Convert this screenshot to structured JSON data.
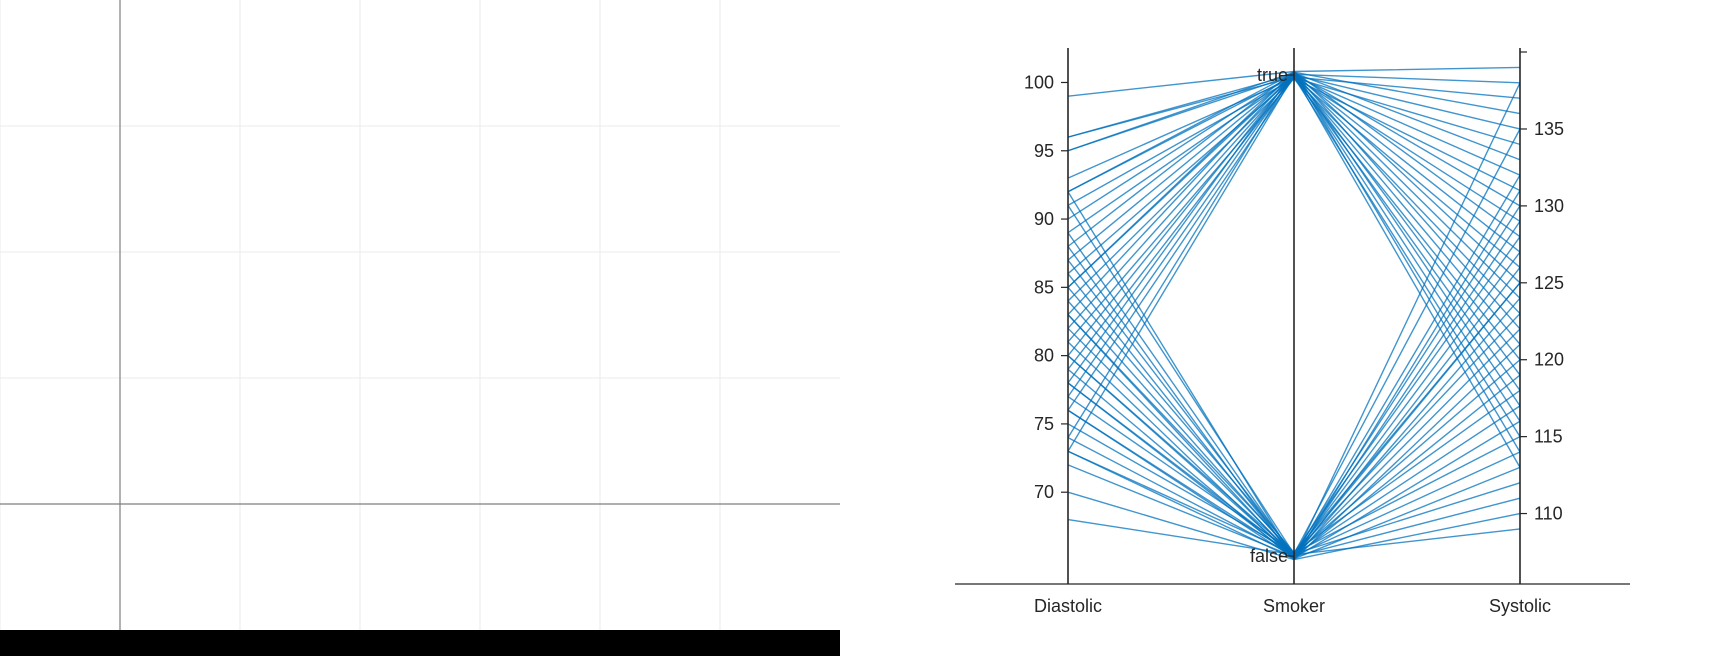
{
  "colors": {
    "line": "#0072BD",
    "axis": "#262626",
    "grid": "#ebebeb",
    "left_axis": "#7f7f7f",
    "bottom_bar": "#000000"
  },
  "left_plot": {
    "grid": true
  },
  "chart_data": {
    "type": "parallel-coordinates",
    "coordinates": [
      "Diastolic",
      "Smoker",
      "Systolic"
    ],
    "axes": [
      {
        "name": "Diastolic",
        "side": "left",
        "ylim": [
          66.5,
          101.5
        ],
        "ticks": [
          70,
          75,
          80,
          85,
          90,
          95,
          100
        ],
        "tick_labels": [
          "70",
          "75",
          "80",
          "85",
          "90",
          "95",
          "100"
        ]
      },
      {
        "name": "Smoker",
        "side": "left",
        "categories": [
          "false",
          "true"
        ]
      },
      {
        "name": "Systolic",
        "side": "right",
        "ylim": [
          107.5,
          140.2
        ],
        "ticks": [
          110,
          115,
          120,
          125,
          130,
          135
        ],
        "tick_labels": [
          "110",
          "115",
          "120",
          "125",
          "130",
          "135"
        ]
      }
    ],
    "grid": false,
    "series": [
      {
        "values": [
          99,
          true,
          139
        ]
      },
      {
        "values": [
          96,
          true,
          138
        ]
      },
      {
        "values": [
          96,
          true,
          137
        ]
      },
      {
        "values": [
          95,
          true,
          136
        ]
      },
      {
        "values": [
          95,
          true,
          135
        ]
      },
      {
        "values": [
          93,
          true,
          134
        ]
      },
      {
        "values": [
          92,
          true,
          133
        ]
      },
      {
        "values": [
          92,
          true,
          132
        ]
      },
      {
        "values": [
          91,
          true,
          131
        ]
      },
      {
        "values": [
          90,
          true,
          130
        ]
      },
      {
        "values": [
          89,
          true,
          129
        ]
      },
      {
        "values": [
          88,
          true,
          128
        ]
      },
      {
        "values": [
          87,
          true,
          127
        ]
      },
      {
        "values": [
          86,
          true,
          126
        ]
      },
      {
        "values": [
          85,
          true,
          125
        ]
      },
      {
        "values": [
          85,
          true,
          124
        ]
      },
      {
        "values": [
          84,
          true,
          123
        ]
      },
      {
        "values": [
          83,
          true,
          122
        ]
      },
      {
        "values": [
          82,
          true,
          121
        ]
      },
      {
        "values": [
          81,
          true,
          120
        ]
      },
      {
        "values": [
          80,
          true,
          119
        ]
      },
      {
        "values": [
          79,
          true,
          118
        ]
      },
      {
        "values": [
          78,
          true,
          117
        ]
      },
      {
        "values": [
          77,
          true,
          116
        ]
      },
      {
        "values": [
          76,
          true,
          115
        ]
      },
      {
        "values": [
          74,
          true,
          114
        ]
      },
      {
        "values": [
          73,
          true,
          113
        ]
      },
      {
        "values": [
          92,
          false,
          138
        ]
      },
      {
        "values": [
          91,
          false,
          135
        ]
      },
      {
        "values": [
          89,
          false,
          132
        ]
      },
      {
        "values": [
          88,
          false,
          131
        ]
      },
      {
        "values": [
          87,
          false,
          130
        ]
      },
      {
        "values": [
          86,
          false,
          129
        ]
      },
      {
        "values": [
          85,
          false,
          128
        ]
      },
      {
        "values": [
          84,
          false,
          127
        ]
      },
      {
        "values": [
          83,
          false,
          126
        ]
      },
      {
        "values": [
          83,
          false,
          125
        ]
      },
      {
        "values": [
          82,
          false,
          125
        ]
      },
      {
        "values": [
          81,
          false,
          124
        ]
      },
      {
        "values": [
          80,
          false,
          123
        ]
      },
      {
        "values": [
          80,
          false,
          122
        ]
      },
      {
        "values": [
          79,
          false,
          121
        ]
      },
      {
        "values": [
          78,
          false,
          120
        ]
      },
      {
        "values": [
          78,
          false,
          119
        ]
      },
      {
        "values": [
          77,
          false,
          118
        ]
      },
      {
        "values": [
          76,
          false,
          117
        ]
      },
      {
        "values": [
          76,
          false,
          116
        ]
      },
      {
        "values": [
          75,
          false,
          115
        ]
      },
      {
        "values": [
          74,
          false,
          114
        ]
      },
      {
        "values": [
          73,
          false,
          113
        ]
      },
      {
        "values": [
          73,
          false,
          112
        ]
      },
      {
        "values": [
          72,
          false,
          111
        ]
      },
      {
        "values": [
          70,
          false,
          110
        ]
      },
      {
        "values": [
          68,
          false,
          109
        ]
      }
    ]
  }
}
